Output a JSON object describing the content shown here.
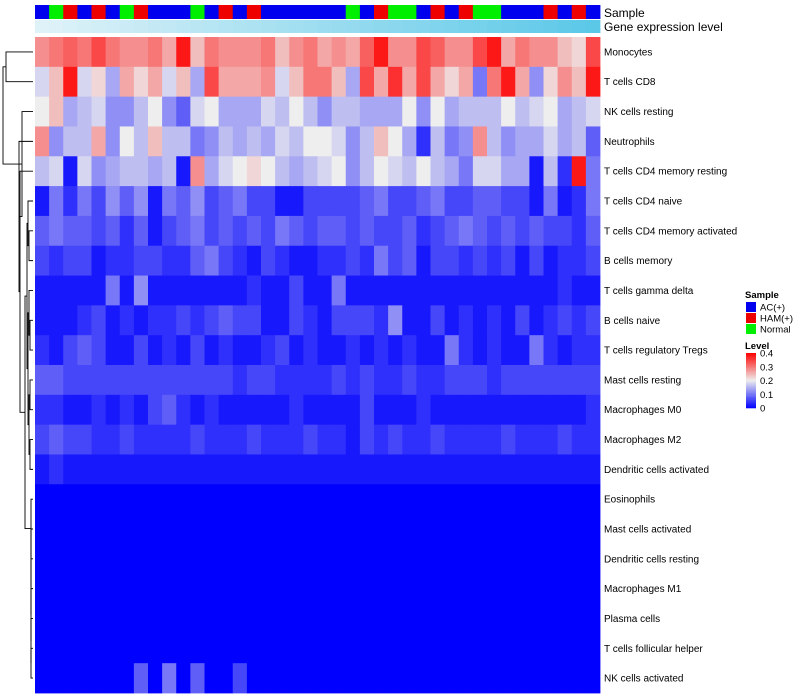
{
  "chart_data": {
    "type": "heatmap",
    "title": "",
    "annotation_labels": [
      "Sample",
      "Gene expression level"
    ],
    "sample_groups": [
      "AC(+)",
      "HAM(+)",
      "Normal"
    ],
    "sample_colors": {
      "AC(+)": "#0000ee",
      "HAM(+)": "#ee0000",
      "Normal": "#00ee00"
    },
    "sample_annotation": [
      "AC(+)",
      "Normal",
      "HAM(+)",
      "AC(+)",
      "HAM(+)",
      "AC(+)",
      "Normal",
      "HAM(+)",
      "AC(+)",
      "AC(+)",
      "AC(+)",
      "Normal",
      "AC(+)",
      "HAM(+)",
      "AC(+)",
      "HAM(+)",
      "AC(+)",
      "AC(+)",
      "AC(+)",
      "AC(+)",
      "AC(+)",
      "AC(+)",
      "Normal",
      "AC(+)",
      "HAM(+)",
      "Normal",
      "Normal",
      "AC(+)",
      "HAM(+)",
      "AC(+)",
      "HAM(+)",
      "Normal",
      "Normal",
      "AC(+)",
      "AC(+)",
      "AC(+)",
      "HAM(+)",
      "AC(+)",
      "HAM(+)",
      "AC(+)"
    ],
    "expression_gradient": [
      "#dff2f8",
      "#5bc8e8"
    ],
    "rows": [
      "Monocytes",
      "T cells CD8",
      "NK cells resting",
      "Neutrophils",
      "T cells CD4 memory resting",
      "T cells CD4 naive",
      "T cells CD4 memory activated",
      "B cells memory",
      "T cells gamma delta",
      "B cells naive",
      "T cells regulatory  Tregs",
      "Mast cells resting",
      "Macrophages M0",
      "Macrophages M2",
      "Dendritic cells activated",
      "Eosinophils",
      "Mast cells activated",
      "Dendritic cells resting",
      "Macrophages M1",
      "Plasma cells",
      "T cells follicular helper",
      "NK cells activated"
    ],
    "values": [
      [
        0.28,
        0.3,
        0.32,
        0.3,
        0.34,
        0.3,
        0.28,
        0.28,
        0.3,
        0.26,
        0.38,
        0.24,
        0.3,
        0.28,
        0.28,
        0.28,
        0.3,
        0.24,
        0.28,
        0.3,
        0.26,
        0.28,
        0.26,
        0.32,
        0.38,
        0.28,
        0.28,
        0.34,
        0.32,
        0.28,
        0.28,
        0.34,
        0.38,
        0.26,
        0.3,
        0.28,
        0.28,
        0.24,
        0.22,
        0.34
      ],
      [
        0.18,
        0.24,
        0.38,
        0.18,
        0.22,
        0.14,
        0.26,
        0.22,
        0.26,
        0.18,
        0.24,
        0.14,
        0.34,
        0.26,
        0.26,
        0.26,
        0.28,
        0.18,
        0.24,
        0.3,
        0.3,
        0.24,
        0.14,
        0.34,
        0.26,
        0.36,
        0.26,
        0.34,
        0.26,
        0.22,
        0.26,
        0.1,
        0.3,
        0.38,
        0.26,
        0.12,
        0.22,
        0.28,
        0.24,
        0.38
      ],
      [
        0.2,
        0.24,
        0.14,
        0.16,
        0.18,
        0.12,
        0.12,
        0.16,
        0.2,
        0.12,
        0.08,
        0.18,
        0.2,
        0.14,
        0.14,
        0.14,
        0.18,
        0.16,
        0.2,
        0.16,
        0.12,
        0.16,
        0.16,
        0.14,
        0.14,
        0.14,
        0.2,
        0.12,
        0.2,
        0.14,
        0.16,
        0.16,
        0.16,
        0.2,
        0.16,
        0.18,
        0.2,
        0.14,
        0.16,
        0.18
      ],
      [
        0.28,
        0.12,
        0.16,
        0.16,
        0.26,
        0.12,
        0.2,
        0.16,
        0.24,
        0.16,
        0.16,
        0.1,
        0.12,
        0.16,
        0.14,
        0.16,
        0.14,
        0.18,
        0.16,
        0.2,
        0.2,
        0.18,
        0.12,
        0.16,
        0.24,
        0.2,
        0.14,
        0.04,
        0.16,
        0.1,
        0.12,
        0.28,
        0.16,
        0.12,
        0.14,
        0.14,
        0.18,
        0.14,
        0.16,
        0.08
      ],
      [
        0.16,
        0.18,
        0.02,
        0.18,
        0.12,
        0.14,
        0.16,
        0.16,
        0.14,
        0.16,
        0.02,
        0.28,
        0.14,
        0.18,
        0.2,
        0.22,
        0.2,
        0.16,
        0.14,
        0.16,
        0.18,
        0.2,
        0.12,
        0.16,
        0.2,
        0.18,
        0.16,
        0.2,
        0.16,
        0.14,
        0.1,
        0.18,
        0.18,
        0.14,
        0.14,
        0.02,
        0.16,
        0.04,
        0.38,
        0.1
      ],
      [
        0.02,
        0.1,
        0.04,
        0.1,
        0.06,
        0.12,
        0.08,
        0.12,
        0.02,
        0.1,
        0.08,
        0.12,
        0.06,
        0.08,
        0.1,
        0.06,
        0.06,
        0.02,
        0.02,
        0.06,
        0.06,
        0.06,
        0.06,
        0.08,
        0.1,
        0.06,
        0.06,
        0.08,
        0.1,
        0.06,
        0.06,
        0.08,
        0.08,
        0.06,
        0.06,
        0.02,
        0.1,
        0.02,
        0.04,
        0.1
      ],
      [
        0.08,
        0.1,
        0.08,
        0.08,
        0.06,
        0.08,
        0.04,
        0.08,
        0.02,
        0.06,
        0.08,
        0.1,
        0.06,
        0.08,
        0.06,
        0.08,
        0.06,
        0.1,
        0.08,
        0.06,
        0.08,
        0.08,
        0.06,
        0.08,
        0.06,
        0.06,
        0.08,
        0.04,
        0.06,
        0.08,
        0.1,
        0.08,
        0.06,
        0.08,
        0.06,
        0.08,
        0.06,
        0.06,
        0.04,
        0.08
      ],
      [
        0.06,
        0.04,
        0.06,
        0.06,
        0.02,
        0.04,
        0.04,
        0.06,
        0.06,
        0.04,
        0.04,
        0.08,
        0.1,
        0.06,
        0.04,
        0.02,
        0.06,
        0.04,
        0.02,
        0.02,
        0.04,
        0.04,
        0.06,
        0.04,
        0.1,
        0.06,
        0.08,
        0.02,
        0.06,
        0.06,
        0.04,
        0.06,
        0.04,
        0.06,
        0.02,
        0.06,
        0.02,
        0.04,
        0.04,
        0.06
      ],
      [
        0.02,
        0.02,
        0.02,
        0.02,
        0.02,
        0.1,
        0.02,
        0.12,
        0.02,
        0.02,
        0.02,
        0.02,
        0.02,
        0.02,
        0.02,
        0.04,
        0.02,
        0.02,
        0.06,
        0.02,
        0.02,
        0.1,
        0.02,
        0.02,
        0.02,
        0.02,
        0.02,
        0.02,
        0.02,
        0.02,
        0.02,
        0.02,
        0.02,
        0.02,
        0.02,
        0.02,
        0.02,
        0.04,
        0.02,
        0.02
      ],
      [
        0.02,
        0.02,
        0.02,
        0.04,
        0.06,
        0.02,
        0.04,
        0.02,
        0.04,
        0.04,
        0.06,
        0.04,
        0.06,
        0.08,
        0.06,
        0.06,
        0.02,
        0.02,
        0.06,
        0.04,
        0.02,
        0.06,
        0.06,
        0.06,
        0.04,
        0.12,
        0.02,
        0.02,
        0.06,
        0.02,
        0.04,
        0.02,
        0.04,
        0.02,
        0.06,
        0.02,
        0.04,
        0.06,
        0.04,
        0.06
      ],
      [
        0.04,
        0.02,
        0.06,
        0.08,
        0.06,
        0.02,
        0.02,
        0.06,
        0.02,
        0.04,
        0.02,
        0.06,
        0.02,
        0.04,
        0.02,
        0.02,
        0.04,
        0.06,
        0.02,
        0.04,
        0.02,
        0.02,
        0.04,
        0.02,
        0.04,
        0.02,
        0.04,
        0.02,
        0.02,
        0.1,
        0.04,
        0.02,
        0.04,
        0.02,
        0.02,
        0.1,
        0.04,
        0.02,
        0.04,
        0.04
      ],
      [
        0.08,
        0.08,
        0.06,
        0.06,
        0.06,
        0.06,
        0.06,
        0.06,
        0.06,
        0.06,
        0.06,
        0.06,
        0.06,
        0.06,
        0.04,
        0.06,
        0.06,
        0.04,
        0.04,
        0.04,
        0.04,
        0.06,
        0.04,
        0.06,
        0.04,
        0.04,
        0.06,
        0.04,
        0.04,
        0.06,
        0.06,
        0.06,
        0.04,
        0.06,
        0.06,
        0.06,
        0.06,
        0.06,
        0.06,
        0.06
      ],
      [
        0.04,
        0.04,
        0.02,
        0.02,
        0.04,
        0.02,
        0.04,
        0.02,
        0.06,
        0.08,
        0.04,
        0.02,
        0.04,
        0.02,
        0.02,
        0.02,
        0.02,
        0.02,
        0.04,
        0.02,
        0.02,
        0.02,
        0.02,
        0.06,
        0.02,
        0.02,
        0.02,
        0.04,
        0.02,
        0.02,
        0.02,
        0.02,
        0.02,
        0.02,
        0.02,
        0.02,
        0.02,
        0.02,
        0.02,
        0.04
      ],
      [
        0.06,
        0.08,
        0.06,
        0.06,
        0.04,
        0.04,
        0.06,
        0.04,
        0.04,
        0.04,
        0.04,
        0.06,
        0.04,
        0.04,
        0.04,
        0.06,
        0.04,
        0.04,
        0.04,
        0.06,
        0.04,
        0.04,
        0.02,
        0.06,
        0.04,
        0.06,
        0.04,
        0.04,
        0.06,
        0.04,
        0.04,
        0.04,
        0.04,
        0.06,
        0.04,
        0.04,
        0.04,
        0.06,
        0.04,
        0.04
      ],
      [
        0.02,
        0.04,
        0.02,
        0.02,
        0.02,
        0.02,
        0.02,
        0.02,
        0.02,
        0.02,
        0.02,
        0.02,
        0.02,
        0.02,
        0.02,
        0.02,
        0.02,
        0.02,
        0.02,
        0.02,
        0.02,
        0.02,
        0.02,
        0.02,
        0.02,
        0.02,
        0.02,
        0.02,
        0.02,
        0.02,
        0.02,
        0.02,
        0.02,
        0.02,
        0.02,
        0.02,
        0.02,
        0.02,
        0.02,
        0.02
      ],
      [
        0,
        0,
        0,
        0,
        0,
        0,
        0,
        0,
        0,
        0,
        0,
        0,
        0,
        0,
        0,
        0,
        0,
        0,
        0,
        0,
        0,
        0,
        0,
        0,
        0,
        0,
        0,
        0,
        0,
        0,
        0,
        0,
        0,
        0,
        0,
        0,
        0,
        0,
        0,
        0
      ],
      [
        0,
        0,
        0,
        0,
        0,
        0,
        0,
        0,
        0,
        0,
        0,
        0,
        0,
        0,
        0,
        0,
        0,
        0,
        0,
        0,
        0,
        0,
        0,
        0,
        0,
        0,
        0,
        0,
        0,
        0,
        0,
        0,
        0,
        0,
        0,
        0,
        0,
        0,
        0,
        0
      ],
      [
        0,
        0,
        0,
        0,
        0,
        0,
        0,
        0,
        0,
        0,
        0,
        0,
        0,
        0,
        0,
        0,
        0,
        0,
        0,
        0,
        0,
        0,
        0,
        0,
        0,
        0,
        0,
        0,
        0,
        0,
        0,
        0,
        0,
        0,
        0,
        0,
        0,
        0,
        0,
        0
      ],
      [
        0,
        0,
        0,
        0,
        0,
        0,
        0,
        0,
        0,
        0,
        0,
        0,
        0,
        0,
        0,
        0,
        0,
        0,
        0,
        0,
        0,
        0,
        0,
        0,
        0,
        0,
        0,
        0,
        0,
        0,
        0,
        0,
        0,
        0,
        0,
        0,
        0,
        0,
        0,
        0
      ],
      [
        0,
        0,
        0,
        0,
        0,
        0,
        0,
        0,
        0,
        0,
        0,
        0,
        0,
        0,
        0,
        0,
        0,
        0,
        0,
        0,
        0,
        0,
        0,
        0,
        0,
        0,
        0,
        0,
        0,
        0,
        0,
        0,
        0,
        0,
        0,
        0,
        0,
        0,
        0,
        0
      ],
      [
        0,
        0,
        0,
        0,
        0,
        0,
        0,
        0,
        0,
        0,
        0,
        0,
        0,
        0,
        0,
        0,
        0,
        0,
        0,
        0,
        0,
        0,
        0,
        0,
        0,
        0,
        0,
        0,
        0,
        0,
        0,
        0,
        0,
        0,
        0,
        0,
        0,
        0,
        0,
        0
      ],
      [
        0,
        0,
        0,
        0,
        0,
        0,
        0,
        0.08,
        0,
        0.1,
        0,
        0.08,
        0,
        0,
        0.06,
        0,
        0,
        0,
        0,
        0,
        0,
        0,
        0,
        0,
        0,
        0,
        0,
        0,
        0,
        0,
        0,
        0,
        0,
        0,
        0,
        0,
        0,
        0,
        0,
        0
      ]
    ],
    "color_scale": {
      "min": 0,
      "max": 0.4,
      "stops": [
        [
          0,
          "#0000ff"
        ],
        [
          0.2,
          "#eeeeee"
        ],
        [
          0.4,
          "#ff0000"
        ]
      ],
      "ticks": [
        0.4,
        0.3,
        0.2,
        0.1,
        0
      ]
    },
    "legend": {
      "sample_title": "Sample",
      "level_title": "Level",
      "placement": "right"
    }
  }
}
